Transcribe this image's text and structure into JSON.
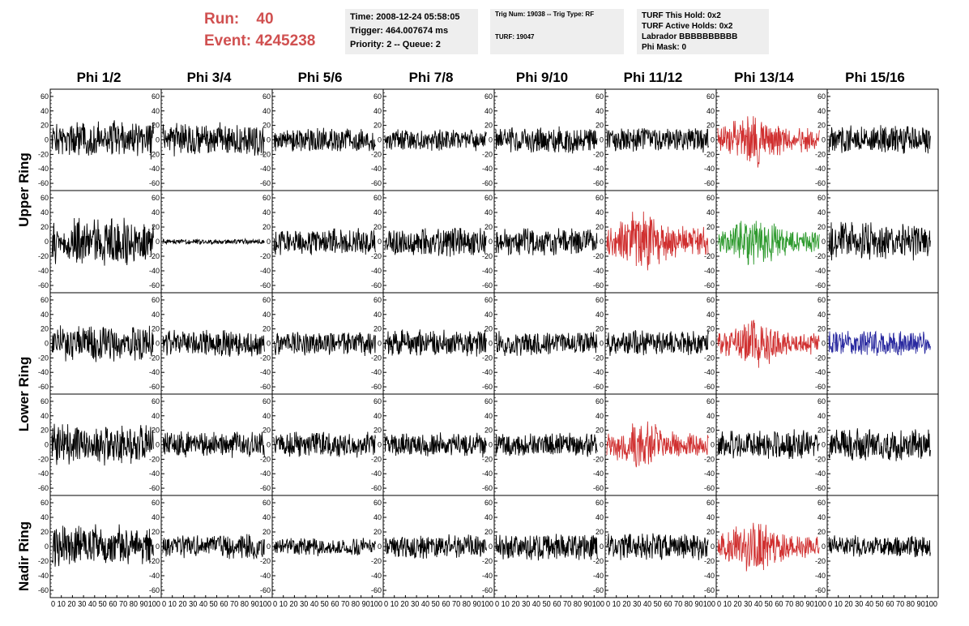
{
  "header": {
    "run_label": "Run:",
    "run_value": "40",
    "event_label": "Event:",
    "event_value": "4245238",
    "time_line": "Time: 2008-12-24 05:58:05",
    "trigger_line": "Trigger: 464.007674 ms",
    "priority_line": "Priority: 2 -- Queue: 2",
    "trig_num_line": "Trig Num: 19038 -- Trig Type: RF",
    "turf_line": "TURF: 19047",
    "turf_hold_line": "TURF This Hold: 0x2",
    "turf_active_line": "TURF Active Holds: 0x2",
    "labrador_line": "Labrador BBBBBBBBBB",
    "phi_mask_line": "Phi Mask: 0"
  },
  "columns": [
    "Phi 1/2",
    "Phi 3/4",
    "Phi 5/6",
    "Phi 7/8",
    "Phi 9/10",
    "Phi 11/12",
    "Phi 13/14",
    "Phi 15/16"
  ],
  "rings": [
    "Upper Ring",
    "Lower Ring",
    "Nadir Ring"
  ],
  "colors": {
    "normal": "#000000",
    "red": "#d03030",
    "green": "#2e9a2e",
    "blue": "#2a2aa0",
    "run_text": "#d05050",
    "info_bg": "#eeeeee"
  },
  "chart_data": {
    "type": "line",
    "rows": 5,
    "cols": 8,
    "ylim": [
      -70,
      70
    ],
    "xlim": [
      0,
      100
    ],
    "y_ticks": [
      -60,
      -40,
      -20,
      0,
      20,
      40,
      60
    ],
    "x_ticks": [
      0,
      10,
      20,
      30,
      40,
      50,
      60,
      70,
      80,
      90,
      100
    ],
    "x_tick_labels_text": [
      "0 10 20 30 40 50 60 70 80 90100",
      "0 10 20 30 40 50 60 70 80 90100",
      "0 10 20 30 40 50 60 70 80 90100",
      "0 10 20 30 40 50 60 70 80 90100",
      "0 10 20 30 40 50 60 70 80 90100",
      "0 10 20 30 40 50 60 70 80 90100",
      "0 10 20 30 40 50 60 70 80 90100",
      "0 10 20 30 40 50 60 70 80 90100"
    ],
    "panel_colors": [
      [
        "normal",
        "normal",
        "normal",
        "normal",
        "normal",
        "normal",
        "red",
        "normal"
      ],
      [
        "normal",
        "normal",
        "normal",
        "normal",
        "normal",
        "red",
        "green",
        "normal"
      ],
      [
        "normal",
        "normal",
        "normal",
        "normal",
        "normal",
        "normal",
        "red",
        "blue"
      ],
      [
        "normal",
        "normal",
        "normal",
        "normal",
        "normal",
        "red",
        "normal",
        "normal"
      ],
      [
        "normal",
        "normal",
        "normal",
        "normal",
        "normal",
        "normal",
        "red",
        "normal"
      ]
    ],
    "panel_amplitudes": [
      [
        28,
        25,
        18,
        16,
        20,
        18,
        32,
        22
      ],
      [
        35,
        4,
        20,
        22,
        20,
        38,
        30,
        28
      ],
      [
        28,
        20,
        18,
        20,
        18,
        20,
        30,
        20
      ],
      [
        30,
        20,
        20,
        18,
        18,
        30,
        22,
        25
      ],
      [
        32,
        18,
        14,
        18,
        20,
        20,
        32,
        16
      ]
    ]
  }
}
